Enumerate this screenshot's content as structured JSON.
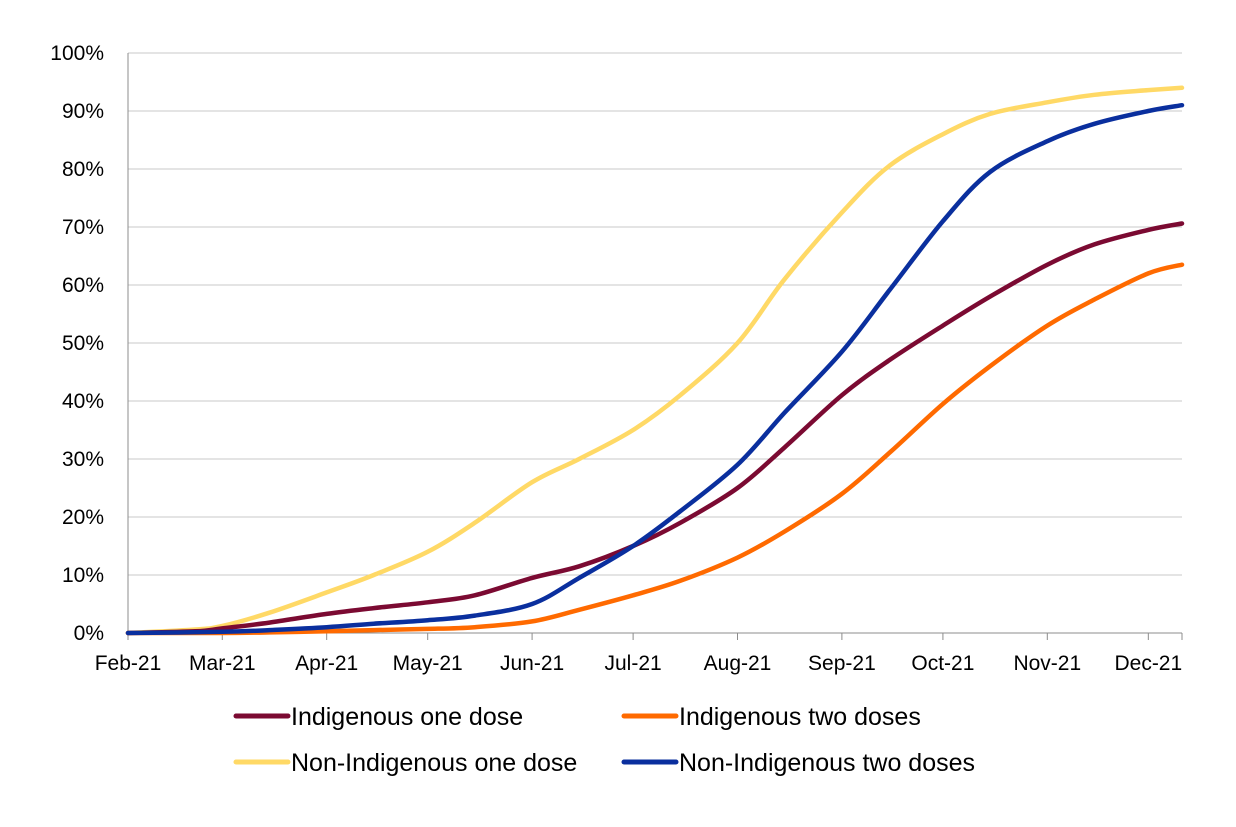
{
  "chart_data": {
    "type": "line",
    "title": "",
    "xlabel": "",
    "ylabel": "",
    "x_ticks": [
      "Feb-21",
      "Mar-21",
      "Apr-21",
      "May-21",
      "Jun-21",
      "Jul-21",
      "Aug-21",
      "Sep-21",
      "Oct-21",
      "Nov-21",
      "Dec-21"
    ],
    "y_ticks": [
      "0%",
      "10%",
      "20%",
      "30%",
      "40%",
      "50%",
      "60%",
      "70%",
      "80%",
      "90%",
      "100%"
    ],
    "ylim": [
      0,
      100
    ],
    "xlim": [
      "2021-02-01",
      "2021-12-11"
    ],
    "grid": "horizontal",
    "legend_position": "bottom",
    "series": [
      {
        "name": "Indigenous one dose",
        "color": "#7b0a32",
        "points": [
          [
            "2021-02-01",
            0
          ],
          [
            "2021-02-21",
            0.3
          ],
          [
            "2021-03-01",
            0.8
          ],
          [
            "2021-03-15",
            1.8
          ],
          [
            "2021-04-01",
            3.3
          ],
          [
            "2021-04-15",
            4.3
          ],
          [
            "2021-05-01",
            5.3
          ],
          [
            "2021-05-15",
            6.5
          ],
          [
            "2021-06-01",
            9.5
          ],
          [
            "2021-06-15",
            11.5
          ],
          [
            "2021-07-01",
            15.0
          ],
          [
            "2021-07-15",
            19.0
          ],
          [
            "2021-08-01",
            25.0
          ],
          [
            "2021-08-15",
            32.0
          ],
          [
            "2021-09-01",
            41.0
          ],
          [
            "2021-09-15",
            47.0
          ],
          [
            "2021-10-01",
            53.0
          ],
          [
            "2021-10-15",
            58.0
          ],
          [
            "2021-11-01",
            63.5
          ],
          [
            "2021-11-15",
            67.0
          ],
          [
            "2021-12-01",
            69.5
          ],
          [
            "2021-12-11",
            70.6
          ]
        ]
      },
      {
        "name": "Indigenous two doses",
        "color": "#ff6a00",
        "points": [
          [
            "2021-02-01",
            0
          ],
          [
            "2021-03-01",
            0
          ],
          [
            "2021-03-15",
            0.1
          ],
          [
            "2021-04-01",
            0.3
          ],
          [
            "2021-04-15",
            0.5
          ],
          [
            "2021-05-01",
            0.7
          ],
          [
            "2021-05-15",
            1.0
          ],
          [
            "2021-06-01",
            2.0
          ],
          [
            "2021-06-15",
            4.0
          ],
          [
            "2021-07-01",
            6.5
          ],
          [
            "2021-07-15",
            9.0
          ],
          [
            "2021-08-01",
            13.0
          ],
          [
            "2021-08-15",
            17.5
          ],
          [
            "2021-09-01",
            24.0
          ],
          [
            "2021-09-15",
            31.0
          ],
          [
            "2021-10-01",
            39.5
          ],
          [
            "2021-10-15",
            46.0
          ],
          [
            "2021-11-01",
            53.0
          ],
          [
            "2021-11-15",
            57.5
          ],
          [
            "2021-12-01",
            62.0
          ],
          [
            "2021-12-11",
            63.5
          ]
        ]
      },
      {
        "name": "Non-Indigenous one dose",
        "color": "#ffd966",
        "points": [
          [
            "2021-02-01",
            0
          ],
          [
            "2021-02-21",
            0.6
          ],
          [
            "2021-03-01",
            1.2
          ],
          [
            "2021-03-15",
            3.5
          ],
          [
            "2021-04-01",
            7.0
          ],
          [
            "2021-04-15",
            10.0
          ],
          [
            "2021-05-01",
            14.0
          ],
          [
            "2021-05-15",
            19.0
          ],
          [
            "2021-06-01",
            26.0
          ],
          [
            "2021-06-15",
            30.0
          ],
          [
            "2021-07-01",
            35.0
          ],
          [
            "2021-07-15",
            41.0
          ],
          [
            "2021-08-01",
            50.0
          ],
          [
            "2021-08-15",
            61.0
          ],
          [
            "2021-09-01",
            72.5
          ],
          [
            "2021-09-15",
            80.5
          ],
          [
            "2021-10-01",
            86.0
          ],
          [
            "2021-10-15",
            89.5
          ],
          [
            "2021-11-01",
            91.5
          ],
          [
            "2021-11-15",
            92.8
          ],
          [
            "2021-12-01",
            93.6
          ],
          [
            "2021-12-11",
            94.0
          ]
        ]
      },
      {
        "name": "Non-Indigenous two doses",
        "color": "#0a2f9e",
        "points": [
          [
            "2021-02-01",
            0
          ],
          [
            "2021-03-01",
            0.2
          ],
          [
            "2021-03-15",
            0.5
          ],
          [
            "2021-04-01",
            1.0
          ],
          [
            "2021-04-15",
            1.6
          ],
          [
            "2021-05-01",
            2.2
          ],
          [
            "2021-05-15",
            3.0
          ],
          [
            "2021-06-01",
            5.0
          ],
          [
            "2021-06-15",
            9.5
          ],
          [
            "2021-07-01",
            15.0
          ],
          [
            "2021-07-15",
            21.0
          ],
          [
            "2021-08-01",
            29.0
          ],
          [
            "2021-08-15",
            38.0
          ],
          [
            "2021-09-01",
            48.5
          ],
          [
            "2021-09-15",
            59.0
          ],
          [
            "2021-10-01",
            71.0
          ],
          [
            "2021-10-15",
            79.5
          ],
          [
            "2021-11-01",
            84.8
          ],
          [
            "2021-11-15",
            87.8
          ],
          [
            "2021-12-01",
            90.0
          ],
          [
            "2021-12-11",
            91.0
          ]
        ]
      }
    ]
  }
}
